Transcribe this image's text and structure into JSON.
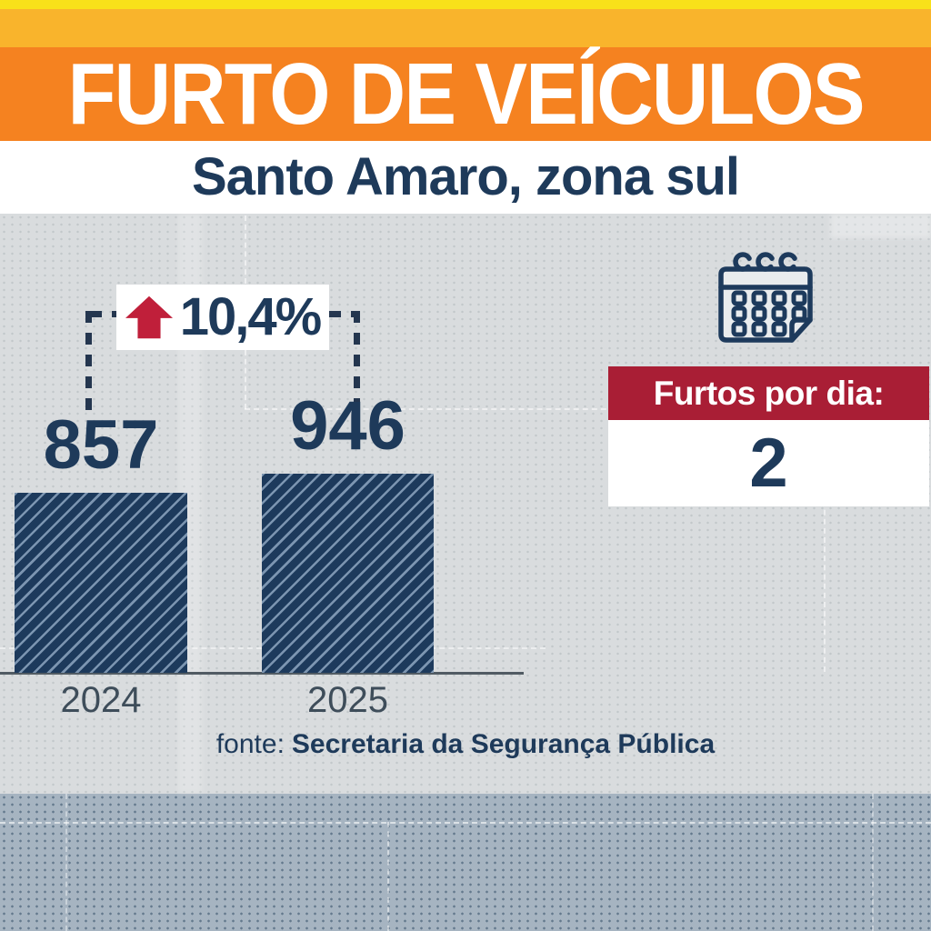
{
  "header": {
    "title": "FURTO DE VEÍCULOS",
    "subtitle": "Santo Amaro, zona sul"
  },
  "chart_data": {
    "type": "bar",
    "title": "FURTO DE VEÍCULOS",
    "subtitle": "Santo Amaro, zona sul",
    "categories": [
      "2024",
      "2025"
    ],
    "values": [
      857,
      946
    ],
    "value_labels": [
      "857",
      "946"
    ],
    "annotation": {
      "text": "10,4%",
      "direction": "up",
      "description": "percentage increase from 2024 to 2025"
    },
    "ylim": [
      0,
      1000
    ],
    "grid": false,
    "legend": "none",
    "bar_style": "dark navy with light diagonal hatching",
    "source": "fonte: Secretaria da Segurança Pública"
  },
  "stat_panel": {
    "icon": "calendar-icon",
    "label": "Furtos por dia:",
    "value": "2"
  },
  "source": {
    "prefix": "fonte:",
    "name": "Secretaria da Segurança Pública"
  },
  "colors": {
    "yellow_strip": "#f8e11a",
    "amber_strip": "#f9b42c",
    "orange_banner": "#f58220",
    "navy_text": "#1e3a5a",
    "bar_fill": "#1d3a5c",
    "bar_hatch": "#8ca5c0",
    "red_banner": "#a91e35",
    "arrow_red": "#c01f3a",
    "chart_background": "#d9dcde",
    "footer_background": "#a6b4c1",
    "axis_line": "#515b63"
  }
}
